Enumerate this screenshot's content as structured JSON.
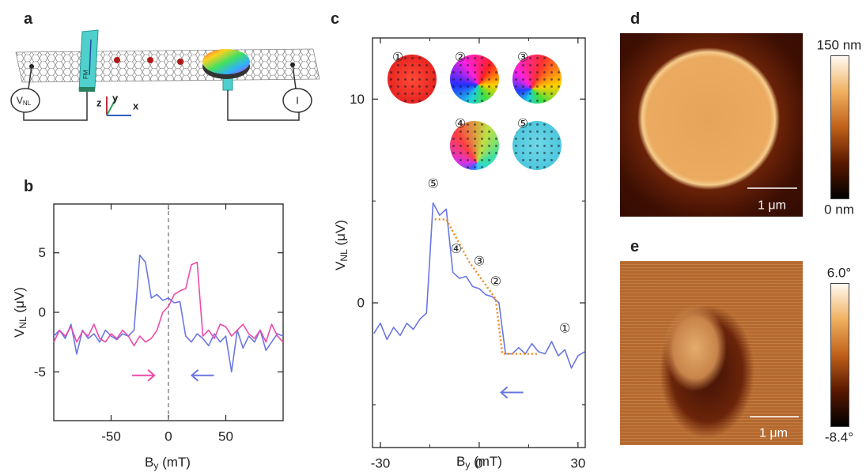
{
  "panels": [
    "a",
    "b",
    "c",
    "d",
    "e"
  ],
  "panel_a": {
    "vnl_main": "V",
    "vnl_sub": "NL",
    "current": "I",
    "fm": "FM",
    "axis_z": "z",
    "axis_y": "y",
    "axis_x": "x"
  },
  "chart_data": [
    {
      "type": "line",
      "xlabel": {
        "main": "B",
        "sub": "y",
        "rest": " (mT)"
      },
      "ylabel": {
        "main": "V",
        "sub": "NL",
        "rest": " (μV)"
      },
      "xlim": [
        -100,
        100
      ],
      "xticks": [
        -50,
        0,
        50
      ],
      "ylim": [
        -9.1,
        9.1
      ],
      "yticks": [
        -5,
        0,
        5
      ],
      "vline": 0,
      "x": [
        -100,
        -95,
        -90,
        -85,
        -80,
        -75,
        -70,
        -65,
        -60,
        -55,
        -50,
        -45,
        -40,
        -35,
        -30,
        -25,
        -20,
        -15,
        -10,
        -5,
        0,
        5,
        10,
        15,
        20,
        25,
        30,
        35,
        40,
        45,
        50,
        55,
        60,
        65,
        70,
        75,
        80,
        85,
        90,
        95,
        100
      ],
      "series": [
        {
          "color": "#6a76e3",
          "values": [
            -2.0,
            -1.5,
            -2.2,
            -1.0,
            -3.5,
            -1.5,
            -2.2,
            -1.8,
            -2.5,
            -1.5,
            -2.0,
            -2.3,
            -1.8,
            -2.0,
            -1.5,
            4.8,
            4.2,
            1.2,
            1.5,
            1.0,
            1.2,
            0.8,
            0.9,
            -2.0,
            -2.5,
            -1.8,
            -2.2,
            -2.8,
            -1.8,
            -2.5,
            -2.0,
            -5.0,
            -1.5,
            -3.0,
            -2.0,
            -2.5,
            -1.5,
            -3.2,
            -2.5,
            -1.8,
            -2.0
          ]
        },
        {
          "color": "#ec4ba8",
          "values": [
            -2.5,
            -1.5,
            -2.0,
            -1.2,
            -2.5,
            -1.6,
            -2.0,
            -1.0,
            -2.2,
            -2.5,
            -1.8,
            -2.2,
            -1.5,
            -2.0,
            -2.8,
            -2.0,
            -2.5,
            -2.2,
            -1.5,
            0.0,
            0.5,
            1.5,
            1.8,
            2.0,
            4.0,
            4.2,
            -2.0,
            -1.5,
            -2.2,
            -1.0,
            -1.2,
            -2.0,
            -1.5,
            -1.0,
            -1.8,
            -2.2,
            -1.5,
            -2.5,
            -1.0,
            -2.0,
            -2.5
          ]
        }
      ],
      "arrows": [
        {
          "x": -22,
          "y": -5.3,
          "direction": "right",
          "color": "#ec4ba8"
        },
        {
          "x": 30,
          "y": -5.3,
          "direction": "left",
          "color": "#6a76e3"
        }
      ]
    },
    {
      "type": "line",
      "xlabel": {
        "main": "B",
        "sub": "y",
        "rest": " (mT)"
      },
      "ylabel": {
        "main": "V",
        "sub": "NL",
        "rest": " (μV)"
      },
      "xlim": [
        -32.4,
        32.2
      ],
      "xticks": [
        -30,
        0,
        30
      ],
      "xminorticks": [
        -15,
        15
      ],
      "ylim": [
        -7.1,
        13
      ],
      "yticks": [
        0,
        10
      ],
      "yminorticks": [
        -5,
        5
      ],
      "x": [
        -32,
        -30,
        -28,
        -26,
        -24,
        -22,
        -20,
        -18,
        -16,
        -14,
        -12,
        -10,
        -8,
        -6,
        -4,
        -2,
        0,
        2,
        4,
        6,
        8,
        10,
        12,
        14,
        16,
        18,
        20,
        22,
        24,
        26,
        28,
        30,
        32
      ],
      "series": [
        {
          "color": "#6a76e3",
          "values": [
            -1.5,
            -1.0,
            -1.8,
            -1.2,
            -1.6,
            -1.0,
            -1.3,
            -0.8,
            -0.5,
            4.9,
            4.3,
            4.6,
            1.5,
            1.2,
            1.3,
            0.8,
            0.7,
            0.4,
            0.3,
            0.0,
            -2.5,
            -2.5,
            -2.2,
            -2.5,
            -2.0,
            -2.4,
            -2.5,
            -1.9,
            -2.6,
            -2.3,
            -3.2,
            -2.6,
            -2.4
          ]
        }
      ],
      "fit": {
        "color": "#f08a24",
        "x": [
          -13.5,
          -10,
          -3,
          5,
          7,
          18
        ],
        "values": [
          4.1,
          4.1,
          2.0,
          0.2,
          -2.5,
          -2.5
        ]
      },
      "annotations": [
        {
          "text": "⑤",
          "x": -14,
          "y": 5.4
        },
        {
          "text": "④",
          "x": -7,
          "y": 2.2
        },
        {
          "text": "③",
          "x": 0,
          "y": 1.6
        },
        {
          "text": "②",
          "x": 5,
          "y": 0.6
        },
        {
          "text": "①",
          "x": 26,
          "y": -1.7
        }
      ],
      "arrows": [
        {
          "x": 10,
          "y": -4.4,
          "direction": "left",
          "color": "#6a76e3"
        }
      ],
      "insets": [
        "①",
        "②",
        "③",
        "④",
        "⑤"
      ]
    }
  ],
  "panel_d": {
    "scale_bar": "1 μm",
    "colorbar": {
      "lim": [
        0,
        150
      ],
      "ticks": [
        {
          "value": 150,
          "label": "150 nm"
        },
        {
          "value": 0,
          "label": "0 nm"
        }
      ]
    }
  },
  "panel_e": {
    "scale_bar": "1 μm",
    "colorbar": {
      "lim": [
        -8.4,
        6.0
      ],
      "ticks": [
        {
          "value": 6.0,
          "label": "6.0°"
        },
        {
          "value": -8.4,
          "label": "-8.4°"
        }
      ]
    }
  }
}
